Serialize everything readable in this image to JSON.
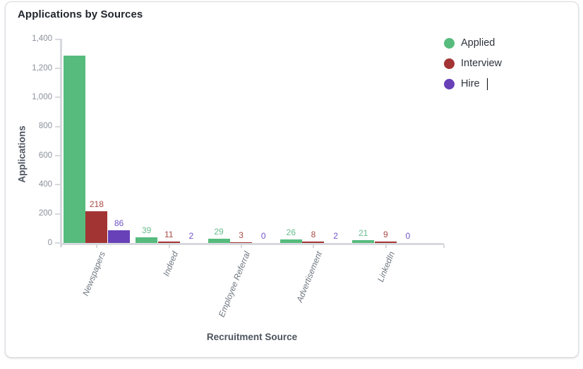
{
  "card": {
    "title": "Applications by Sources"
  },
  "chart_data": {
    "type": "bar",
    "title": "Applications by Sources",
    "xlabel": "Recruitment Source",
    "ylabel": "Applications",
    "ylim": [
      0,
      1400
    ],
    "y_tick_step": 200,
    "y_tick_labels": [
      "0",
      "200",
      "400",
      "600",
      "800",
      "1,000",
      "1,200",
      "1,400"
    ],
    "grid": false,
    "legend_position": "top-right",
    "categories": [
      "Newspapers",
      "Indeed",
      "Employee Referral",
      "Advertisement",
      "LinkedIn"
    ],
    "series": [
      {
        "name": "Applied",
        "color": "#56bb7d",
        "label_color": "#67bd8c",
        "values": [
          1290,
          39,
          29,
          26,
          21
        ],
        "value_labels": [
          "",
          "39",
          "29",
          "26",
          "21"
        ]
      },
      {
        "name": "Interview",
        "color": "#a23433",
        "label_color": "#a84a45",
        "values": [
          218,
          11,
          3,
          8,
          9
        ],
        "value_labels": [
          "218",
          "11",
          "3",
          "8",
          "9"
        ]
      },
      {
        "name": "Hire",
        "color": "#6841b8",
        "label_color": "#6f54c8",
        "values": [
          86,
          2,
          0,
          2,
          0
        ],
        "value_labels": [
          "86",
          "2",
          "0",
          "2",
          "0"
        ]
      }
    ],
    "legend": [
      {
        "label": "Applied",
        "color": "#56bb7d",
        "editing": false
      },
      {
        "label": "Interview",
        "color": "#a23433",
        "editing": false
      },
      {
        "label": "Hire",
        "color": "#6841b8",
        "editing": true
      }
    ]
  }
}
